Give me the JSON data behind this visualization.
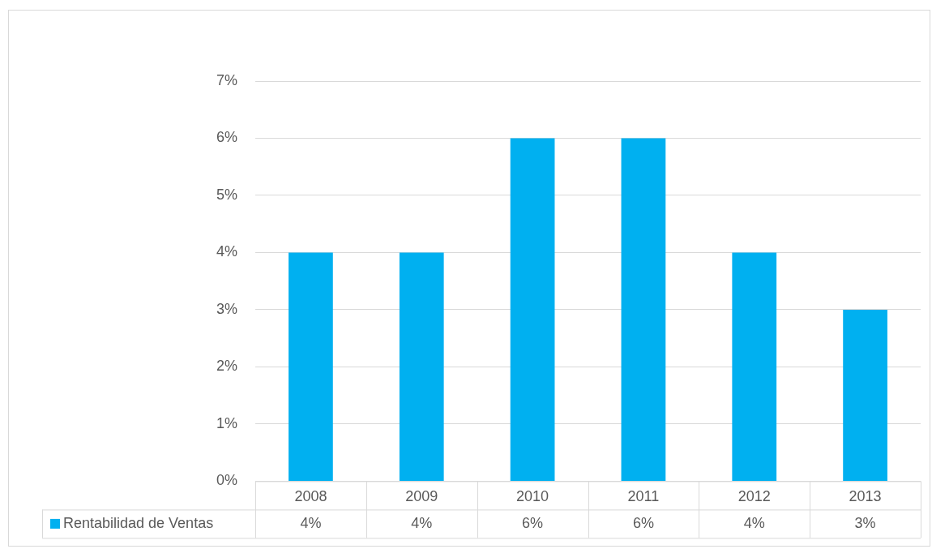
{
  "chart_data": {
    "type": "bar",
    "categories": [
      "2008",
      "2009",
      "2010",
      "2011",
      "2012",
      "2013"
    ],
    "series": [
      {
        "name": "Rentabilidad de Ventas",
        "color": "#00b0f0",
        "values": [
          4,
          4,
          6,
          6,
          4,
          3
        ]
      }
    ],
    "value_labels": [
      "4%",
      "4%",
      "6%",
      "6%",
      "4%",
      "3%"
    ],
    "ylim": [
      0,
      7
    ],
    "yticks": [
      {
        "value": 0,
        "label": "0%"
      },
      {
        "value": 1,
        "label": "1%"
      },
      {
        "value": 2,
        "label": "2%"
      },
      {
        "value": 3,
        "label": "3%"
      },
      {
        "value": 4,
        "label": "4%"
      },
      {
        "value": 5,
        "label": "5%"
      },
      {
        "value": 6,
        "label": "6%"
      },
      {
        "value": 7,
        "label": "7%"
      }
    ],
    "grid": "y",
    "legend": "bottom"
  }
}
